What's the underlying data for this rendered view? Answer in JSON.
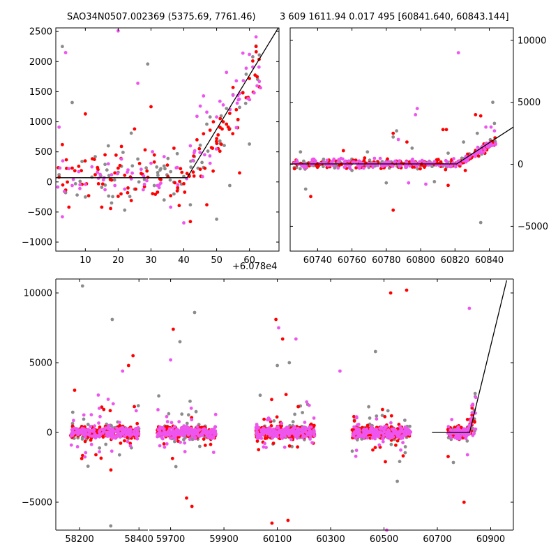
{
  "titles": {
    "left": "SAO34N0507.002369 (5375.69, 7761.46)",
    "right": "3 609 1611.94 0.017 495 [60841.640, 60843.144]"
  },
  "colors": {
    "grey": "#8c8c8c",
    "red": "#ff0000",
    "magenta": "#ee55ee",
    "model": "#000000"
  },
  "chart_data": [
    {
      "id": "top-left",
      "type": "scatter",
      "title": "SAO34N0507.002369 (5375.69, 7761.46)",
      "x_offset_label": "+6.078e4",
      "xlim": [
        1,
        69
      ],
      "ylim": [
        -1150,
        2560
      ],
      "x_ticks": [
        10,
        20,
        30,
        40,
        50,
        60
      ],
      "y_ticks": [
        -1000,
        -500,
        0,
        500,
        1000,
        1500,
        2000,
        2500
      ],
      "tick_side": "left",
      "model_line": [
        [
          1,
          70
        ],
        [
          41,
          70
        ],
        [
          69,
          2580
        ]
      ],
      "series": [
        {
          "color": "grey",
          "base": [
            [
              2,
              120
            ],
            [
              3,
              2250
            ],
            [
              4,
              -180
            ],
            [
              6,
              1320
            ],
            [
              7,
              -30
            ],
            [
              9,
              340
            ],
            [
              10,
              -250
            ],
            [
              12,
              80
            ],
            [
              13,
              420
            ],
            [
              15,
              -90
            ],
            [
              17,
              600
            ],
            [
              18,
              -350
            ],
            [
              20,
              160
            ],
            [
              21,
              260
            ],
            [
              22,
              -470
            ],
            [
              24,
              810
            ],
            [
              25,
              -120
            ],
            [
              26,
              380
            ],
            [
              28,
              40
            ],
            [
              29,
              1960
            ],
            [
              31,
              -60
            ],
            [
              33,
              220
            ],
            [
              34,
              -300
            ],
            [
              36,
              170
            ],
            [
              37,
              -200
            ],
            [
              38,
              470
            ],
            [
              40,
              90
            ],
            [
              42,
              -380
            ],
            [
              43,
              350
            ],
            [
              45,
              610
            ],
            [
              46,
              240
            ],
            [
              47,
              960
            ],
            [
              48,
              1080
            ],
            [
              50,
              -620
            ],
            [
              51,
              680
            ],
            [
              53,
              1220
            ],
            [
              54,
              -60
            ],
            [
              55,
              1450
            ],
            [
              57,
              1240
            ],
            [
              58,
              1490
            ],
            [
              59,
              1790
            ],
            [
              60,
              630
            ],
            [
              61,
              2080
            ],
            [
              62,
              2260
            ],
            [
              63,
              2110
            ]
          ],
          "jitter": 260,
          "n_extra": 40,
          "trend": true
        },
        {
          "color": "red",
          "base": [
            [
              2,
              80
            ],
            [
              3,
              620
            ],
            [
              5,
              -420
            ],
            [
              6,
              230
            ],
            [
              8,
              260
            ],
            [
              9,
              -40
            ],
            [
              10,
              1130
            ],
            [
              11,
              -230
            ],
            [
              13,
              120
            ],
            [
              14,
              -30
            ],
            [
              15,
              -420
            ],
            [
              16,
              450
            ],
            [
              18,
              30
            ],
            [
              19,
              150
            ],
            [
              20,
              -240
            ],
            [
              21,
              590
            ],
            [
              22,
              110
            ],
            [
              23,
              -100
            ],
            [
              24,
              -310
            ],
            [
              25,
              880
            ],
            [
              27,
              140
            ],
            [
              28,
              -80
            ],
            [
              30,
              1250
            ],
            [
              31,
              330
            ],
            [
              32,
              -170
            ],
            [
              33,
              40
            ],
            [
              35,
              280
            ],
            [
              36,
              -230
            ],
            [
              37,
              560
            ],
            [
              38,
              -150
            ],
            [
              39,
              220
            ],
            [
              40,
              -30
            ],
            [
              41,
              140
            ],
            [
              42,
              -660
            ],
            [
              43,
              430
            ],
            [
              44,
              700
            ],
            [
              45,
              210
            ],
            [
              46,
              800
            ],
            [
              47,
              -380
            ],
            [
              48,
              860
            ],
            [
              49,
              1000
            ],
            [
              50,
              720
            ],
            [
              51,
              510
            ],
            [
              52,
              1000
            ],
            [
              53,
              960
            ],
            [
              54,
              1140
            ],
            [
              55,
              1570
            ],
            [
              56,
              1200
            ],
            [
              57,
              150
            ],
            [
              58,
              1480
            ],
            [
              59,
              1400
            ],
            [
              60,
              1720
            ],
            [
              61,
              2010
            ],
            [
              62,
              2250
            ],
            [
              63,
              1580
            ]
          ],
          "jitter": 300,
          "n_extra": 70,
          "trend": true
        },
        {
          "color": "magenta",
          "base": [
            [
              2,
              910
            ],
            [
              3,
              -580
            ],
            [
              4,
              2150
            ],
            [
              5,
              220
            ],
            [
              6,
              -60
            ],
            [
              8,
              170
            ],
            [
              10,
              -40
            ],
            [
              12,
              250
            ],
            [
              14,
              60
            ],
            [
              16,
              -130
            ],
            [
              17,
              300
            ],
            [
              18,
              120
            ],
            [
              19,
              -60
            ],
            [
              20,
              2510
            ],
            [
              21,
              380
            ],
            [
              22,
              -120
            ],
            [
              23,
              200
            ],
            [
              24,
              50
            ],
            [
              26,
              1640
            ],
            [
              27,
              210
            ],
            [
              28,
              -40
            ],
            [
              30,
              310
            ],
            [
              32,
              -60
            ],
            [
              34,
              420
            ],
            [
              36,
              -420
            ],
            [
              38,
              240
            ],
            [
              40,
              -680
            ],
            [
              42,
              600
            ],
            [
              44,
              1090
            ],
            [
              45,
              1260
            ],
            [
              46,
              1430
            ],
            [
              47,
              1160
            ],
            [
              48,
              310
            ],
            [
              50,
              1080
            ],
            [
              51,
              1340
            ],
            [
              52,
              1280
            ],
            [
              53,
              1820
            ],
            [
              55,
              1440
            ],
            [
              56,
              1680
            ],
            [
              57,
              1470
            ],
            [
              58,
              2140
            ],
            [
              59,
              1890
            ],
            [
              60,
              2120
            ],
            [
              61,
              1910
            ],
            [
              62,
              2410
            ],
            [
              63,
              1670
            ]
          ],
          "jitter": 260,
          "n_extra": 45,
          "trend": true
        }
      ]
    },
    {
      "id": "top-right",
      "type": "scatter",
      "xlim": [
        60724,
        60854
      ],
      "ylim": [
        -7000,
        11000
      ],
      "x_ticks": [
        60740,
        60760,
        60780,
        60800,
        60820,
        60840
      ],
      "y_ticks": [
        -5000,
        0,
        5000,
        10000
      ],
      "tick_side": "right",
      "model_line": [
        [
          60724,
          30
        ],
        [
          60821,
          30
        ],
        [
          60854,
          3000
        ]
      ],
      "series": [
        {
          "color": "grey",
          "base": [
            [
              60730,
              1000
            ],
            [
              60733,
              -2000
            ],
            [
              60760,
              -500
            ],
            [
              60769,
              1000
            ],
            [
              60780,
              -1500
            ],
            [
              60784,
              2200
            ],
            [
              60786,
              2700
            ],
            [
              60795,
              1300
            ],
            [
              60808,
              -1400
            ],
            [
              60816,
              900
            ],
            [
              60825,
              1800
            ],
            [
              60833,
              2500
            ],
            [
              60835,
              -4700
            ],
            [
              60842,
              5000
            ],
            [
              60843,
              3300
            ]
          ],
          "jitter": 250,
          "n_extra": 130,
          "cluster": [
            60726,
            60844
          ]
        },
        {
          "color": "red",
          "base": [
            [
              60736,
              -2600
            ],
            [
              60755,
              1100
            ],
            [
              60784,
              -3700
            ],
            [
              60784,
              2500
            ],
            [
              60792,
              1800
            ],
            [
              60813,
              2800
            ],
            [
              60815,
              2800
            ],
            [
              60816,
              -1700
            ],
            [
              60826,
              -500
            ],
            [
              60832,
              4000
            ],
            [
              60835,
              3900
            ]
          ],
          "jitter": 250,
          "n_extra": 190,
          "cluster": [
            60726,
            60844
          ]
        },
        {
          "color": "magenta",
          "base": [
            [
              60787,
              2000
            ],
            [
              60793,
              -1500
            ],
            [
              60797,
              4000
            ],
            [
              60798,
              4500
            ],
            [
              60803,
              -1600
            ],
            [
              60822,
              9000
            ],
            [
              60838,
              3000
            ],
            [
              60841,
              3000
            ],
            [
              60843,
              2700
            ]
          ],
          "jitter": 250,
          "n_extra": 190,
          "cluster": [
            60726,
            60844
          ]
        }
      ]
    },
    {
      "id": "bottom",
      "type": "scatter",
      "ylim": [
        -7000,
        11000
      ],
      "y_ticks": [
        -5000,
        0,
        5000,
        10000
      ],
      "tick_side": "left",
      "segments": [
        {
          "xlim": [
            58120,
            58430
          ],
          "x_ticks": [
            58200,
            58400
          ]
        },
        {
          "xlim": [
            59620,
            60985
          ],
          "x_ticks": [
            59700,
            59900,
            60100,
            60300,
            60500,
            60700,
            60900
          ]
        }
      ],
      "seasons": [
        [
          58170,
          58400
        ],
        [
          59650,
          59870
        ],
        [
          60020,
          60240
        ],
        [
          60380,
          60600
        ],
        [
          60740,
          60844
        ]
      ],
      "model_line": [
        [
          60680,
          0
        ],
        [
          60821,
          0
        ],
        [
          60960,
          10900
        ]
      ],
      "outliers": [
        {
          "color": "grey",
          "points": [
            [
              58210,
              10500
            ],
            [
              58310,
              8100
            ],
            [
              58305,
              -6700
            ],
            [
              59735,
              6500
            ],
            [
              59790,
              8600
            ],
            [
              60100,
              4800
            ],
            [
              60145,
              5000
            ],
            [
              60468,
              5800
            ],
            [
              60550,
              -3500
            ]
          ]
        },
        {
          "color": "red",
          "points": [
            [
              58380,
              5500
            ],
            [
              58365,
              4800
            ],
            [
              59710,
              7400
            ],
            [
              59760,
              -4700
            ],
            [
              59780,
              -5300
            ],
            [
              60095,
              8100
            ],
            [
              60120,
              6700
            ],
            [
              60080,
              -6500
            ],
            [
              60140,
              -6300
            ],
            [
              60525,
              10000
            ],
            [
              60585,
              10200
            ],
            [
              60800,
              -5000
            ]
          ]
        },
        {
          "color": "magenta",
          "points": [
            [
              60105,
              7500
            ],
            [
              60170,
              6700
            ],
            [
              60335,
              4400
            ],
            [
              60820,
              8900
            ],
            [
              60510,
              -7000
            ],
            [
              59700,
              5200
            ],
            [
              58345,
              4400
            ]
          ]
        }
      ],
      "series": [
        {
          "color": "grey",
          "n_per_season": 90,
          "jitter": 650
        },
        {
          "color": "red",
          "n_per_season": 170,
          "jitter": 550
        },
        {
          "color": "magenta",
          "n_per_season": 190,
          "jitter": 500
        }
      ]
    }
  ]
}
